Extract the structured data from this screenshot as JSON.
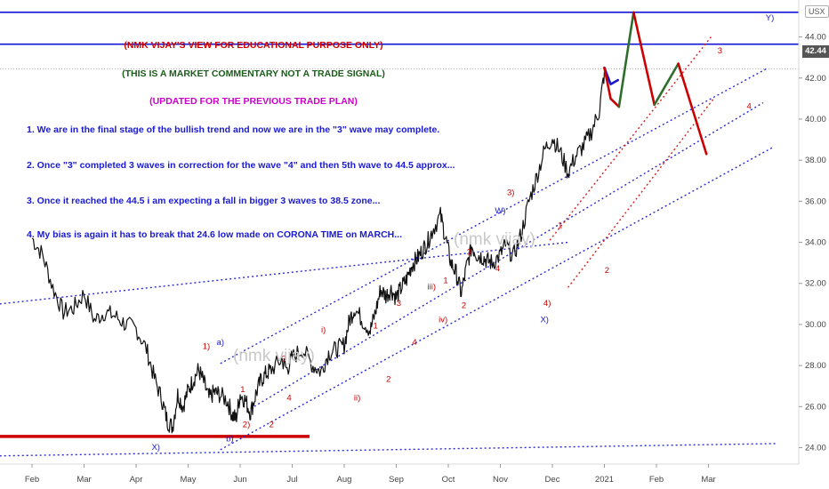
{
  "symbol": "USX",
  "last_price": "42.44",
  "notes": [
    {
      "text": "(NMK VIJAY'S VIEW FOR EDUCATIONAL PURPOSE ONLY)",
      "color": "#cc0000"
    },
    {
      "text": "(THIS IS A MARKET COMMENTARY NOT A  TRADE SIGNAL)",
      "color": "#1a5c1a"
    },
    {
      "text": "(UPDATED FOR THE PREVIOUS TRADE PLAN)",
      "color": "#cc00cc"
    },
    {
      "text": "1. We are in the final stage of the bullish trend and now we are in the \"3\" wave may complete.",
      "color": "#1a1ad4"
    },
    {
      "text": "2. Once \"3\" completed 3 waves in correction for the wave \"4\" and then 5th wave to  44.5 approx...",
      "color": "#1a1ad4"
    },
    {
      "text": "3. Once it reached the 44.5 i am expecting a fall in bigger 3 waves to 38.5 zone...",
      "color": "#1a1ad4"
    },
    {
      "text": "4. My bias is again it has to break that 24.6 low made on CORONA TIME on MARCH...",
      "color": "#1a1ad4"
    }
  ],
  "watermarks": [
    "(nmk vijay)",
    "(nmk vijay)"
  ],
  "chart_data": {
    "type": "line",
    "x_ticks": [
      "Feb",
      "Mar",
      "Apr",
      "May",
      "Jun",
      "Jul",
      "Aug",
      "Sep",
      "Oct",
      "Nov",
      "Dec",
      "2021",
      "Feb",
      "Mar"
    ],
    "y_ticks": [
      "24.00",
      "26.00",
      "28.00",
      "30.00",
      "32.00",
      "34.00",
      "36.00",
      "38.00",
      "40.00",
      "42.00",
      "44.00"
    ],
    "ylim": [
      23.2,
      45.8
    ],
    "price_series": {
      "name": "",
      "points": [
        [
          0,
          34.2
        ],
        [
          0.2,
          33.4
        ],
        [
          0.4,
          31.8
        ],
        [
          0.6,
          30.6
        ],
        [
          0.8,
          30.8
        ],
        [
          1.0,
          31.5
        ],
        [
          1.2,
          30.2
        ],
        [
          1.4,
          30.6
        ],
        [
          1.6,
          30.4
        ],
        [
          1.8,
          30.0
        ],
        [
          2.0,
          29.8
        ],
        [
          2.2,
          28.8
        ],
        [
          2.35,
          27.4
        ],
        [
          2.5,
          26.3
        ],
        [
          2.6,
          25.3
        ],
        [
          2.7,
          25.0
        ],
        [
          2.8,
          26.6
        ],
        [
          2.9,
          26.0
        ],
        [
          3.0,
          26.8
        ],
        [
          3.1,
          27.3
        ],
        [
          3.2,
          27.8
        ],
        [
          3.3,
          27.2
        ],
        [
          3.4,
          26.4
        ],
        [
          3.5,
          26.7
        ],
        [
          3.6,
          26.6
        ],
        [
          3.75,
          26.3
        ],
        [
          3.85,
          25.6
        ],
        [
          3.92,
          25.4
        ],
        [
          4.0,
          26.6
        ],
        [
          4.1,
          26.3
        ],
        [
          4.2,
          25.7
        ],
        [
          4.3,
          26.6
        ],
        [
          4.4,
          27.3
        ],
        [
          4.5,
          27.6
        ],
        [
          4.6,
          27.8
        ],
        [
          4.8,
          28.3
        ],
        [
          4.9,
          27.8
        ],
        [
          5.0,
          28.4
        ],
        [
          5.2,
          28.8
        ],
        [
          5.4,
          28.0
        ],
        [
          5.55,
          27.7
        ],
        [
          5.7,
          28.6
        ],
        [
          5.85,
          28.8
        ],
        [
          6.0,
          29.0
        ],
        [
          6.1,
          30.2
        ],
        [
          6.2,
          30.8
        ],
        [
          6.35,
          30.2
        ],
        [
          6.5,
          29.7
        ],
        [
          6.6,
          30.6
        ],
        [
          6.7,
          31.7
        ],
        [
          6.8,
          31.4
        ],
        [
          6.9,
          31.7
        ],
        [
          7.0,
          31.3
        ],
        [
          7.1,
          31.8
        ],
        [
          7.2,
          32.2
        ],
        [
          7.3,
          32.9
        ],
        [
          7.4,
          33.2
        ],
        [
          7.5,
          33.6
        ],
        [
          7.6,
          34.0
        ],
        [
          7.7,
          34.6
        ],
        [
          7.85,
          35.3
        ],
        [
          7.95,
          34.2
        ],
        [
          8.05,
          33.0
        ],
        [
          8.15,
          32.5
        ],
        [
          8.25,
          31.5
        ],
        [
          8.35,
          32.8
        ],
        [
          8.45,
          33.8
        ],
        [
          8.55,
          33.4
        ],
        [
          8.65,
          33.3
        ],
        [
          8.75,
          33.1
        ],
        [
          8.85,
          33.0
        ],
        [
          9.0,
          33.4
        ],
        [
          9.1,
          33.9
        ],
        [
          9.25,
          33.3
        ],
        [
          9.4,
          34.4
        ],
        [
          9.55,
          36.0
        ],
        [
          9.7,
          37.2
        ],
        [
          9.85,
          38.5
        ],
        [
          10.0,
          39.1
        ],
        [
          10.15,
          38.4
        ],
        [
          10.3,
          37.4
        ],
        [
          10.45,
          38.2
        ],
        [
          10.6,
          38.7
        ],
        [
          10.75,
          39.4
        ],
        [
          10.9,
          40.4
        ],
        [
          11.0,
          42.3
        ]
      ]
    },
    "projection": [
      {
        "name": "",
        "color": "#1818d0",
        "points": [
          [
            11.0,
            42.5
          ],
          [
            11.12,
            41.7
          ],
          [
            11.26,
            41.9
          ]
        ]
      },
      {
        "name": "",
        "color": "#cc0000",
        "points": [
          [
            11.0,
            42.5
          ],
          [
            11.12,
            41.0
          ],
          [
            11.28,
            40.6
          ]
        ]
      },
      {
        "name": "",
        "color": "#2d6e2d",
        "points": [
          [
            11.28,
            40.6
          ],
          [
            11.56,
            45.2
          ]
        ]
      },
      {
        "name": "",
        "color": "#cc0000",
        "points": [
          [
            11.56,
            45.2
          ],
          [
            11.96,
            40.7
          ]
        ]
      },
      {
        "name": "",
        "color": "#2d6e2d",
        "points": [
          [
            11.96,
            40.7
          ],
          [
            12.42,
            42.7
          ]
        ]
      },
      {
        "name": "",
        "color": "#cc0000",
        "points": [
          [
            12.42,
            42.7
          ],
          [
            12.96,
            38.3
          ]
        ]
      }
    ],
    "wave_labels": [
      {
        "text": "1)",
        "x": 3.35,
        "y": 28.8,
        "color": "#cc0000"
      },
      {
        "text": "a)",
        "x": 3.62,
        "y": 29.0,
        "color": "#1818d0"
      },
      {
        "text": "1",
        "x": 4.05,
        "y": 26.7,
        "color": "#cc0000"
      },
      {
        "text": "b)",
        "x": 3.8,
        "y": 24.3,
        "color": "#1818d0"
      },
      {
        "text": "2)",
        "x": 4.12,
        "y": 25.0,
        "color": "#cc0000"
      },
      {
        "text": "2",
        "x": 4.6,
        "y": 25.0,
        "color": "#cc0000"
      },
      {
        "text": "3",
        "x": 4.84,
        "y": 28.2,
        "color": "#cc0000"
      },
      {
        "text": "4",
        "x": 4.94,
        "y": 26.3,
        "color": "#cc0000"
      },
      {
        "text": "i)",
        "x": 5.6,
        "y": 29.6,
        "color": "#cc0000"
      },
      {
        "text": "1",
        "x": 6.6,
        "y": 29.8,
        "color": "#cc0000"
      },
      {
        "text": "ii)",
        "x": 6.25,
        "y": 26.3,
        "color": "#cc0000"
      },
      {
        "text": "2",
        "x": 6.85,
        "y": 27.2,
        "color": "#cc0000"
      },
      {
        "text": "3",
        "x": 7.05,
        "y": 30.9,
        "color": "#cc0000"
      },
      {
        "text": "4",
        "x": 7.35,
        "y": 29.0,
        "color": "#cc0000"
      },
      {
        "text": "iii)",
        "x": 7.68,
        "y": 31.7,
        "color": "#cc0000"
      },
      {
        "text": "iv)",
        "x": 7.9,
        "y": 30.1,
        "color": "#cc0000"
      },
      {
        "text": "1",
        "x": 7.95,
        "y": 32.0,
        "color": "#cc0000"
      },
      {
        "text": "2",
        "x": 8.3,
        "y": 30.8,
        "color": "#cc0000"
      },
      {
        "text": "3",
        "x": 8.4,
        "y": 33.4,
        "color": "#cc0000"
      },
      {
        "text": "4",
        "x": 8.95,
        "y": 32.6,
        "color": "#cc0000"
      },
      {
        "text": "W)",
        "x": 9.0,
        "y": 35.4,
        "color": "#1818d0"
      },
      {
        "text": "3)",
        "x": 9.2,
        "y": 36.3,
        "color": "#cc0000"
      },
      {
        "text": "1",
        "x": 10.15,
        "y": 34.7,
        "color": "#cc0000"
      },
      {
        "text": "4)",
        "x": 9.9,
        "y": 30.9,
        "color": "#cc0000"
      },
      {
        "text": "X)",
        "x": 9.85,
        "y": 30.1,
        "color": "#1818d0"
      },
      {
        "text": "2",
        "x": 11.05,
        "y": 32.5,
        "color": "#cc0000"
      },
      {
        "text": "X)",
        "x": 2.38,
        "y": 23.9,
        "color": "#1818d0"
      },
      {
        "text": "3",
        "x": 13.22,
        "y": 43.2,
        "color": "#cc0000"
      },
      {
        "text": "4",
        "x": 13.78,
        "y": 40.5,
        "color": "#cc0000"
      },
      {
        "text": "Y)",
        "x": 14.18,
        "y": 44.8,
        "color": "#1818d0"
      }
    ]
  }
}
